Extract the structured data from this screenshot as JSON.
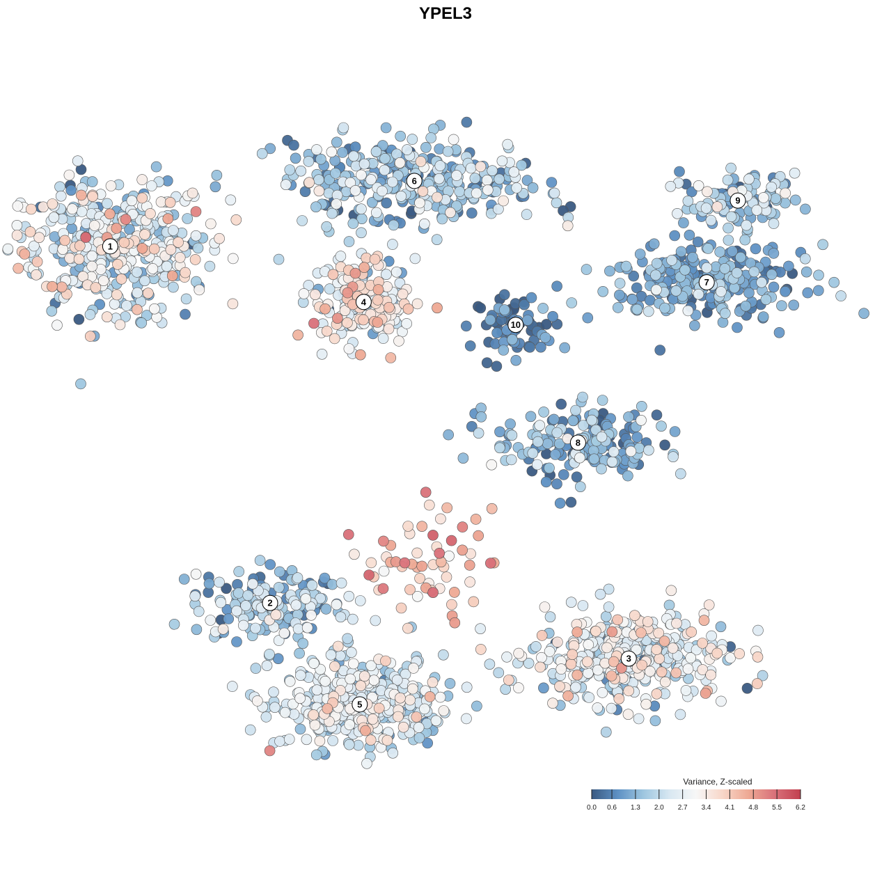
{
  "chart_data": {
    "type": "scatter",
    "title": "YPEL3",
    "xlabel": "",
    "ylabel": "",
    "grid": false,
    "legend": {
      "title": "Variance, Z-scaled",
      "placement": "bottom-right",
      "ticks": [
        "0.0",
        "0.6",
        "1.3",
        "2.0",
        "2.7",
        "3.4",
        "4.1",
        "4.8",
        "5.5",
        "6.2"
      ],
      "range": [
        0.0,
        6.2
      ],
      "colors": [
        "#3a5a82",
        "#5e91c4",
        "#9fc7e0",
        "#d9e8f2",
        "#f7f7f7",
        "#f8d7c9",
        "#eea994",
        "#d9717a",
        "#c2404f"
      ]
    },
    "clusters": [
      {
        "id": "1",
        "label": "1",
        "x": -8.6,
        "y": 7.3,
        "mean": 2.4
      },
      {
        "id": "2",
        "label": "2",
        "x": -4.5,
        "y": -3.6,
        "mean": 1.4
      },
      {
        "id": "3",
        "label": "3",
        "x": 4.7,
        "y": -5.3,
        "mean": 2.5
      },
      {
        "id": "4",
        "label": "4",
        "x": -2.1,
        "y": 5.6,
        "mean": 2.8
      },
      {
        "id": "5",
        "label": "5",
        "x": -2.2,
        "y": -6.7,
        "mean": 2.3
      },
      {
        "id": "6",
        "label": "6",
        "x": -0.8,
        "y": 9.3,
        "mean": 1.5
      },
      {
        "id": "7",
        "label": "7",
        "x": 6.7,
        "y": 6.2,
        "mean": 1.0
      },
      {
        "id": "8",
        "label": "8",
        "x": 3.4,
        "y": 1.3,
        "mean": 1.1
      },
      {
        "id": "9",
        "label": "9",
        "x": 7.5,
        "y": 8.7,
        "mean": 1.6
      },
      {
        "id": "10",
        "label": "10",
        "x": 1.8,
        "y": 4.9,
        "mean": 0.5
      }
    ]
  }
}
